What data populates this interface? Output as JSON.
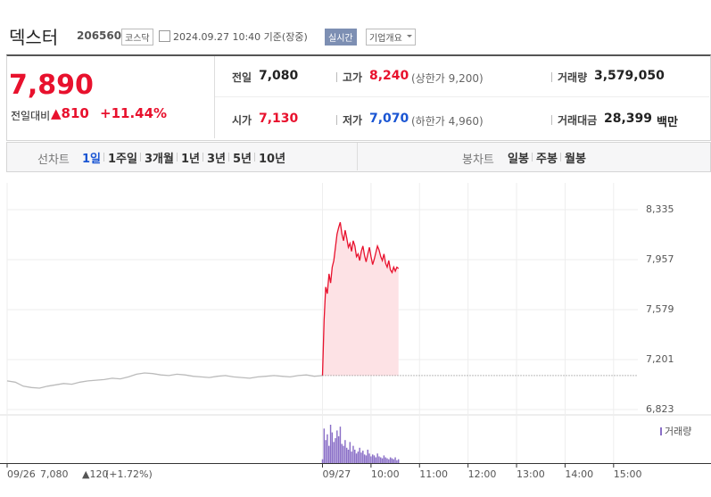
{
  "header": {
    "name": "덱스터",
    "code": "206560",
    "market": "코스닥",
    "time": "2024.09.27 10:40 기준(장중)",
    "realtime": "실시간",
    "overview": "기업개요"
  },
  "quote": {
    "price": "7,890",
    "change_label": "전일대비",
    "change": "▲810",
    "rate": "+11.44%"
  },
  "stats": [
    {
      "label": "전일",
      "value": "7,080"
    },
    {
      "label": "고가",
      "value": "8,240",
      "note": "(상한가 9,200)"
    },
    {
      "label": "거래량",
      "value": "3,579,050"
    },
    {
      "label": "시가",
      "value": "7,130"
    },
    {
      "label": "저가",
      "value": "7,070",
      "note": "(하한가 4,960)"
    },
    {
      "label": "거래대금",
      "value": "28,399",
      "unit": "백만"
    }
  ],
  "tabs": {
    "line_label": "선차트",
    "line": [
      "1일",
      "1주일",
      "3개월",
      "1년",
      "3년",
      "5년",
      "10년"
    ],
    "candle_label": "봉차트",
    "candle": [
      "일봉",
      "주봉",
      "월봉"
    ]
  },
  "prev_day": {
    "close": "7,080",
    "change": "▲120",
    "rate": "(+1.72%)"
  },
  "chart_data": {
    "type": "line",
    "grid": true,
    "baseline": 7080,
    "ylim": [
      6823,
      8335
    ],
    "yticks": [
      {
        "value": 8335,
        "label": "8,335"
      },
      {
        "value": 7957,
        "label": "7,957"
      },
      {
        "value": 7579,
        "label": "7,579"
      },
      {
        "value": 7201,
        "label": "7,201"
      },
      {
        "value": 6823,
        "label": "6,823"
      }
    ],
    "xlim": [
      0,
      780
    ],
    "xticks": [
      {
        "value": 0,
        "label": "09/26"
      },
      {
        "value": 390,
        "label": "09/27"
      },
      {
        "value": 450,
        "label": "10:00"
      },
      {
        "value": 510,
        "label": "11:00"
      },
      {
        "value": 570,
        "label": "12:00"
      },
      {
        "value": 630,
        "label": "13:00"
      },
      {
        "value": 690,
        "label": "14:00"
      },
      {
        "value": 750,
        "label": "15:00"
      }
    ],
    "series": [
      {
        "color": "#bbbbbb",
        "x": [
          0,
          10,
          20,
          30,
          40,
          50,
          60,
          70,
          80,
          90,
          100,
          110,
          120,
          130,
          140,
          150,
          160,
          170,
          180,
          190,
          200,
          210,
          220,
          230,
          240,
          250,
          260,
          270,
          280,
          290,
          300,
          310,
          320,
          330,
          340,
          350,
          360,
          370,
          380,
          390
        ],
        "values": [
          7040,
          7030,
          7000,
          6990,
          6985,
          7000,
          7010,
          7020,
          7015,
          7030,
          7040,
          7045,
          7050,
          7060,
          7055,
          7070,
          7090,
          7100,
          7095,
          7085,
          7080,
          7090,
          7085,
          7075,
          7070,
          7065,
          7075,
          7080,
          7070,
          7065,
          7060,
          7070,
          7075,
          7080,
          7075,
          7070,
          7080,
          7085,
          7075,
          7080
        ]
      },
      {
        "color": "#e8112d",
        "fill": "#fde2e5",
        "x": [
          390,
          392,
          394,
          396,
          398,
          400,
          402,
          404,
          406,
          408,
          410,
          412,
          414,
          416,
          418,
          420,
          422,
          424,
          426,
          428,
          430,
          432,
          434,
          436,
          438,
          440,
          442,
          444,
          446,
          448,
          450,
          452,
          454,
          456,
          458,
          460,
          462,
          464,
          466,
          468,
          470,
          472,
          474,
          476,
          478,
          480,
          482,
          484
        ],
        "values": [
          7080,
          7500,
          7750,
          7700,
          7850,
          7780,
          7900,
          7950,
          8050,
          8150,
          8200,
          8240,
          8150,
          8100,
          8180,
          8120,
          8050,
          8080,
          8020,
          8100,
          8060,
          7980,
          8000,
          7950,
          8020,
          8060,
          7990,
          7940,
          8000,
          8050,
          7980,
          7920,
          7960,
          8010,
          8060,
          8030,
          7980,
          7950,
          8000,
          7930,
          7900,
          7950,
          7880,
          7860,
          7900,
          7870,
          7900,
          7890
        ]
      }
    ],
    "volume": {
      "name": "거래량",
      "color": "#8a6fc7",
      "ylim": [
        0,
        200000
      ],
      "x": [
        390,
        392,
        394,
        396,
        398,
        400,
        402,
        404,
        406,
        408,
        410,
        412,
        414,
        416,
        418,
        420,
        422,
        424,
        426,
        428,
        430,
        432,
        434,
        436,
        438,
        440,
        442,
        444,
        446,
        448,
        450,
        452,
        454,
        456,
        458,
        460,
        462,
        464,
        466,
        468,
        470,
        472,
        474,
        476,
        478,
        480,
        482,
        484
      ],
      "values": [
        20000,
        180000,
        120000,
        150000,
        90000,
        200000,
        160000,
        110000,
        130000,
        170000,
        140000,
        190000,
        100000,
        90000,
        120000,
        80000,
        70000,
        110000,
        60000,
        90000,
        70000,
        50000,
        60000,
        80000,
        55000,
        65000,
        45000,
        40000,
        70000,
        50000,
        35000,
        45000,
        40000,
        30000,
        50000,
        35000,
        30000,
        25000,
        40000,
        30000,
        25000,
        20000,
        30000,
        25000,
        20000,
        30000,
        15000,
        20000
      ]
    }
  }
}
